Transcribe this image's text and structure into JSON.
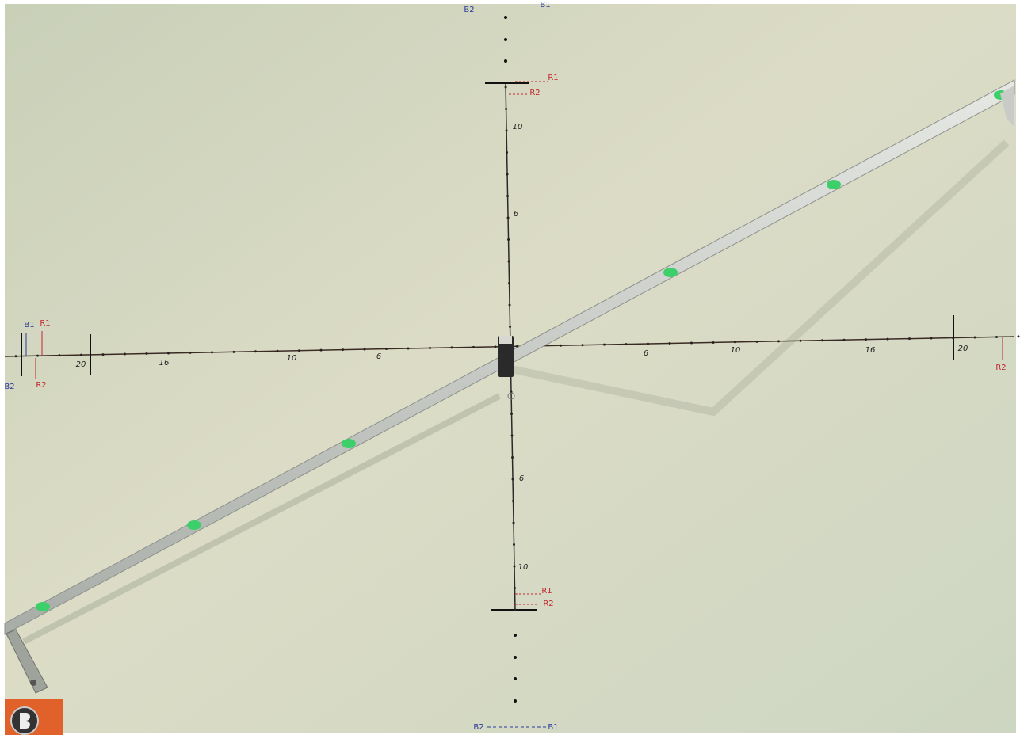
{
  "labels": [
    "B2",
    "B1",
    "R1",
    "R2",
    "10",
    "6",
    "B1",
    "R1",
    "B2",
    "R2",
    "20",
    "16",
    "10",
    "6",
    "6",
    "10",
    "16",
    "20",
    "R2",
    "6",
    "10",
    "R1",
    "R2",
    "B2",
    "B1"
  ]
}
